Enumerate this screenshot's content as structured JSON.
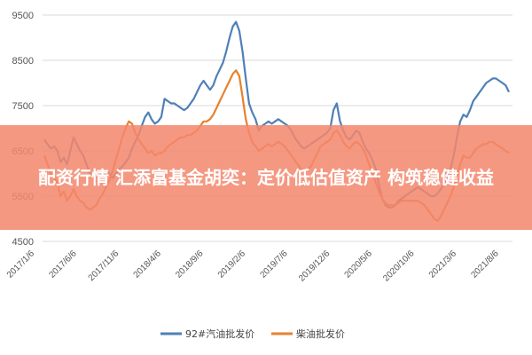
{
  "chart_data": {
    "type": "line",
    "y_ticks": [
      4500,
      5500,
      6500,
      7500,
      8500,
      9500
    ],
    "ylim": [
      4500,
      9500
    ],
    "x_tick_labels": [
      "2017/1/6",
      "2017/6/6",
      "2017/11/6",
      "2018/4/6",
      "2018/9/6",
      "2019/2/6",
      "2019/7/6",
      "2019/12/6",
      "2020/5/6",
      "2020/10/6",
      "2021/3/6",
      "2021/8/6"
    ],
    "grid": "horizontal",
    "legend_position": "bottom",
    "series": [
      {
        "name": "92#汽油批发价",
        "color": "#4e80b7",
        "values": [
          6750,
          6650,
          6550,
          6600,
          6500,
          6250,
          6350,
          6200,
          6500,
          6800,
          6650,
          6500,
          6400,
          6200,
          6000,
          5950,
          6000,
          6050,
          5950,
          6050,
          6000,
          5900,
          6000,
          6100,
          6150,
          6250,
          6350,
          6550,
          6700,
          6850,
          7050,
          7250,
          7350,
          7200,
          7100,
          7150,
          7250,
          7650,
          7600,
          7550,
          7550,
          7500,
          7450,
          7400,
          7450,
          7550,
          7650,
          7800,
          7950,
          8050,
          7950,
          7850,
          7950,
          8150,
          8300,
          8450,
          8700,
          9000,
          9250,
          9350,
          9150,
          8700,
          8100,
          7550,
          7350,
          7200,
          6950,
          7050,
          7100,
          7150,
          7100,
          7150,
          7200,
          7150,
          7100,
          7050,
          6950,
          6800,
          6700,
          6600,
          6550,
          6600,
          6650,
          6700,
          6750,
          6800,
          6850,
          6900,
          7000,
          7400,
          7550,
          7150,
          6950,
          6800,
          6750,
          6850,
          6950,
          6900,
          6700,
          6550,
          6450,
          6300,
          6100,
          5750,
          5450,
          5300,
          5250,
          5250,
          5300,
          5400,
          5450,
          5500,
          5550,
          5600,
          5650,
          5700,
          5650,
          5600,
          5550,
          5500,
          5500,
          5550,
          5650,
          5750,
          5900,
          6100,
          6400,
          6800,
          7150,
          7300,
          7250,
          7400,
          7600,
          7700,
          7800,
          7900,
          8000,
          8050,
          8100,
          8100,
          8050,
          8000,
          7950,
          7800
        ]
      },
      {
        "name": "柴油批发价",
        "color": "#e8812d",
        "values": [
          6400,
          6200,
          6000,
          5900,
          5800,
          5500,
          5600,
          5400,
          5500,
          5650,
          5500,
          5400,
          5350,
          5250,
          5200,
          5250,
          5300,
          5450,
          5550,
          5700,
          5850,
          6050,
          6300,
          6550,
          6800,
          7000,
          7150,
          7100,
          6900,
          6750,
          6650,
          6550,
          6450,
          6500,
          6400,
          6450,
          6450,
          6500,
          6600,
          6650,
          6700,
          6750,
          6800,
          6800,
          6850,
          6850,
          6900,
          6950,
          7050,
          7150,
          7150,
          7200,
          7300,
          7450,
          7600,
          7750,
          7900,
          8050,
          8200,
          8280,
          8150,
          7700,
          7200,
          6900,
          6700,
          6600,
          6500,
          6550,
          6600,
          6650,
          6600,
          6650,
          6700,
          6650,
          6600,
          6500,
          6400,
          6300,
          6200,
          6100,
          6050,
          6100,
          6150,
          6300,
          6450,
          6600,
          6650,
          6700,
          6750,
          6900,
          6950,
          6850,
          6700,
          6600,
          6550,
          6650,
          6700,
          6650,
          6550,
          6400,
          6200,
          6000,
          5800,
          5600,
          5450,
          5350,
          5300,
          5300,
          5300,
          5350,
          5400,
          5400,
          5400,
          5400,
          5400,
          5400,
          5350,
          5300,
          5200,
          5100,
          5000,
          4950,
          5050,
          5200,
          5350,
          5500,
          5700,
          5950,
          6200,
          6400,
          6350,
          6350,
          6450,
          6550,
          6600,
          6650,
          6650,
          6700,
          6700,
          6650,
          6600,
          6550,
          6500,
          6450
        ]
      }
    ]
  },
  "banner": {
    "text": "配资行情 汇添富基金胡奕：定价低估值资产 构筑稳健收益"
  }
}
